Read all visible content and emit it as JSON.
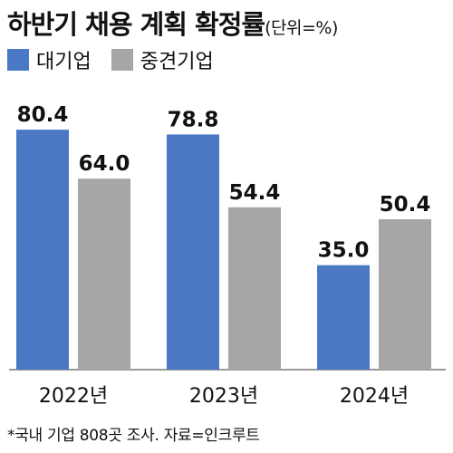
{
  "title": {
    "main": "하반기 채용 계획 확정률",
    "unit": "(단위=%)"
  },
  "colors": {
    "large": "#4a78c4",
    "mid": "#a6a6a6",
    "axis": "#9a9a9a"
  },
  "chart_data": {
    "type": "bar",
    "categories": [
      "2022년",
      "2023년",
      "2024년"
    ],
    "series": [
      {
        "name": "대기업",
        "values": [
          80.4,
          78.8,
          35.0
        ],
        "labels": [
          "80.4",
          "78.8",
          "35.0"
        ]
      },
      {
        "name": "중견기업",
        "values": [
          64.0,
          54.4,
          50.4
        ],
        "labels": [
          "64.0",
          "54.4",
          "50.4"
        ]
      }
    ],
    "ylim": [
      0,
      85
    ],
    "grid": false,
    "legend": "top-left"
  },
  "footnote": "*국내 기업 808곳 조사. 자료=인크루트"
}
